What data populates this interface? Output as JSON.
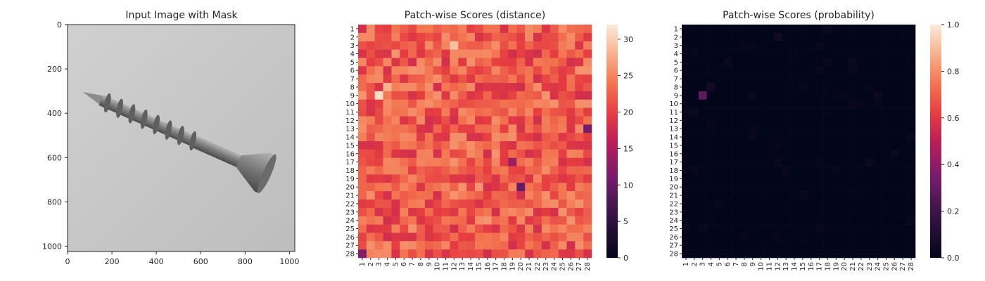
{
  "panels": [
    {
      "title": "Input Image with Mask",
      "x_ticks": [
        "0",
        "200",
        "400",
        "600",
        "800",
        "1000"
      ],
      "y_ticks": [
        "0",
        "200",
        "400",
        "600",
        "800",
        "1000"
      ],
      "image": {
        "description": "screw",
        "background": "#c7c7c7",
        "screw_color": "#8a8a8a"
      }
    },
    {
      "title": "Patch-wise Scores (distance)",
      "colorbar_ticks": [
        "0",
        "5",
        "10",
        "15",
        "20",
        "25",
        "30"
      ],
      "colorbar_max": 32
    },
    {
      "title": "Patch-wise Scores (probability)",
      "colorbar_ticks": [
        "0.0",
        "0.2",
        "0.4",
        "0.6",
        "0.8",
        "1.0"
      ],
      "colorbar_max": 1.0
    }
  ],
  "chart_data": [
    {
      "type": "image",
      "title": "Input Image with Mask",
      "xlim": [
        0,
        1024
      ],
      "ylim": [
        1024,
        0
      ]
    },
    {
      "type": "heatmap",
      "title": "Patch-wise Scores (distance)",
      "x_categories": [
        "1",
        "2",
        "3",
        "4",
        "5",
        "6",
        "7",
        "8",
        "9",
        "10",
        "11",
        "12",
        "13",
        "14",
        "15",
        "16",
        "17",
        "18",
        "19",
        "20",
        "21",
        "22",
        "23",
        "24",
        "25",
        "26",
        "27",
        "28"
      ],
      "y_categories": [
        "1",
        "2",
        "3",
        "4",
        "5",
        "6",
        "7",
        "8",
        "9",
        "10",
        "11",
        "12",
        "13",
        "14",
        "15",
        "16",
        "17",
        "18",
        "19",
        "20",
        "21",
        "22",
        "23",
        "24",
        "25",
        "26",
        "27",
        "28"
      ],
      "value_range": [
        0,
        32
      ],
      "colormap": "rocket",
      "typical_value": 22,
      "hotspots": [
        {
          "col": 3,
          "row": 9,
          "value": 31
        },
        {
          "col": 12,
          "row": 3,
          "value": 29
        },
        {
          "col": 4,
          "row": 8,
          "value": 28
        }
      ],
      "coldspots": [
        {
          "col": 1,
          "row": 28,
          "value": 12
        },
        {
          "col": 20,
          "row": 20,
          "value": 10
        },
        {
          "col": 28,
          "row": 13,
          "value": 11
        },
        {
          "col": 19,
          "row": 17,
          "value": 14
        }
      ]
    },
    {
      "type": "heatmap",
      "title": "Patch-wise Scores (probability)",
      "x_categories": [
        "1",
        "2",
        "3",
        "4",
        "5",
        "6",
        "7",
        "8",
        "9",
        "10",
        "11",
        "12",
        "13",
        "14",
        "15",
        "16",
        "17",
        "18",
        "19",
        "20",
        "21",
        "22",
        "23",
        "24",
        "25",
        "26",
        "27",
        "28"
      ],
      "y_categories": [
        "1",
        "2",
        "3",
        "4",
        "5",
        "6",
        "7",
        "8",
        "9",
        "10",
        "11",
        "12",
        "13",
        "14",
        "15",
        "16",
        "17",
        "18",
        "19",
        "20",
        "21",
        "22",
        "23",
        "24",
        "25",
        "26",
        "27",
        "28"
      ],
      "value_range": [
        0,
        1
      ],
      "colormap": "rocket",
      "typical_value": 0.0,
      "hotspots": [
        {
          "col": 3,
          "row": 9,
          "value": 0.28
        },
        {
          "col": 4,
          "row": 8,
          "value": 0.06
        },
        {
          "col": 12,
          "row": 2,
          "value": 0.05
        },
        {
          "col": 26,
          "row": 16,
          "value": 0.03
        }
      ]
    }
  ]
}
